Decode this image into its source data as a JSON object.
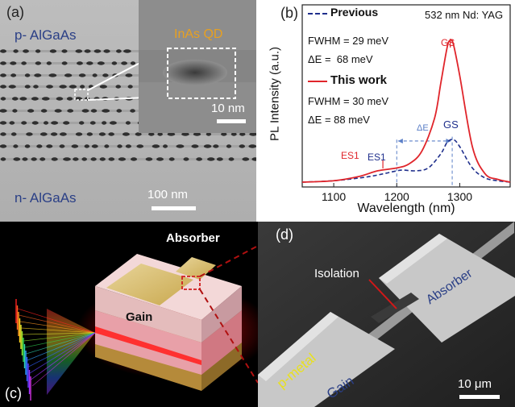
{
  "panel_a": {
    "label": "(a)",
    "top_layer": "p- AlGaAs",
    "bottom_layer": "n- AlGaAs",
    "inset_title": "InAs QD",
    "inset_scale": "10 nm",
    "main_scale": "100 nm"
  },
  "panel_b": {
    "label": "(b)",
    "legend": {
      "previous": "Previous",
      "previous_fwhm": "FWHM = 29 meV",
      "previous_de": "ΔE =  68 meV",
      "this_work": "This work",
      "this_fwhm": "FWHM = 30 meV",
      "this_de": "ΔE = 88 meV"
    },
    "laser": "532 nm Nd: YAG",
    "annotations": {
      "gs_red": "GS",
      "gs_blue": "GS",
      "es1_red": "ES1",
      "es1_blue": "ES1",
      "delta_e": "ΔE"
    },
    "colors": {
      "previous": "#1f2f8c",
      "this_work": "#e0252b",
      "guide": "#5b7fc7"
    }
  },
  "chart_data": {
    "type": "line",
    "xlabel": "Wavelength (nm)",
    "ylabel": "PL Intensity (a.u.)",
    "xlim": [
      1050,
      1380
    ],
    "xticks": [
      1100,
      1200,
      1300
    ],
    "xtick_labels": [
      "1100",
      "1200",
      "1300"
    ],
    "series": [
      {
        "name": "Previous",
        "style": "dashed",
        "x": [
          1050,
          1100,
          1150,
          1180,
          1200,
          1210,
          1230,
          1250,
          1270,
          1280,
          1290,
          1300,
          1320,
          1340,
          1360,
          1380
        ],
        "y": [
          0.0,
          0.01,
          0.035,
          0.06,
          0.08,
          0.085,
          0.08,
          0.1,
          0.2,
          0.28,
          0.3,
          0.25,
          0.1,
          0.03,
          0.01,
          0.0
        ]
      },
      {
        "name": "This work",
        "style": "solid",
        "x": [
          1050,
          1100,
          1140,
          1170,
          1200,
          1220,
          1240,
          1260,
          1270,
          1280,
          1285,
          1290,
          1300,
          1320,
          1340,
          1360,
          1380
        ],
        "y": [
          0.0,
          0.01,
          0.04,
          0.08,
          0.1,
          0.13,
          0.22,
          0.45,
          0.7,
          0.95,
          1.0,
          0.97,
          0.75,
          0.25,
          0.06,
          0.02,
          0.0
        ]
      }
    ]
  },
  "panel_c": {
    "label": "(c)",
    "absorber": "Absorber",
    "gain": "Gain"
  },
  "panel_d": {
    "label": "(d)",
    "isolation": "Isolation",
    "absorber": "Absorber",
    "p_metal": "p-metal",
    "gain": "Gain",
    "scale": "10 μm"
  }
}
